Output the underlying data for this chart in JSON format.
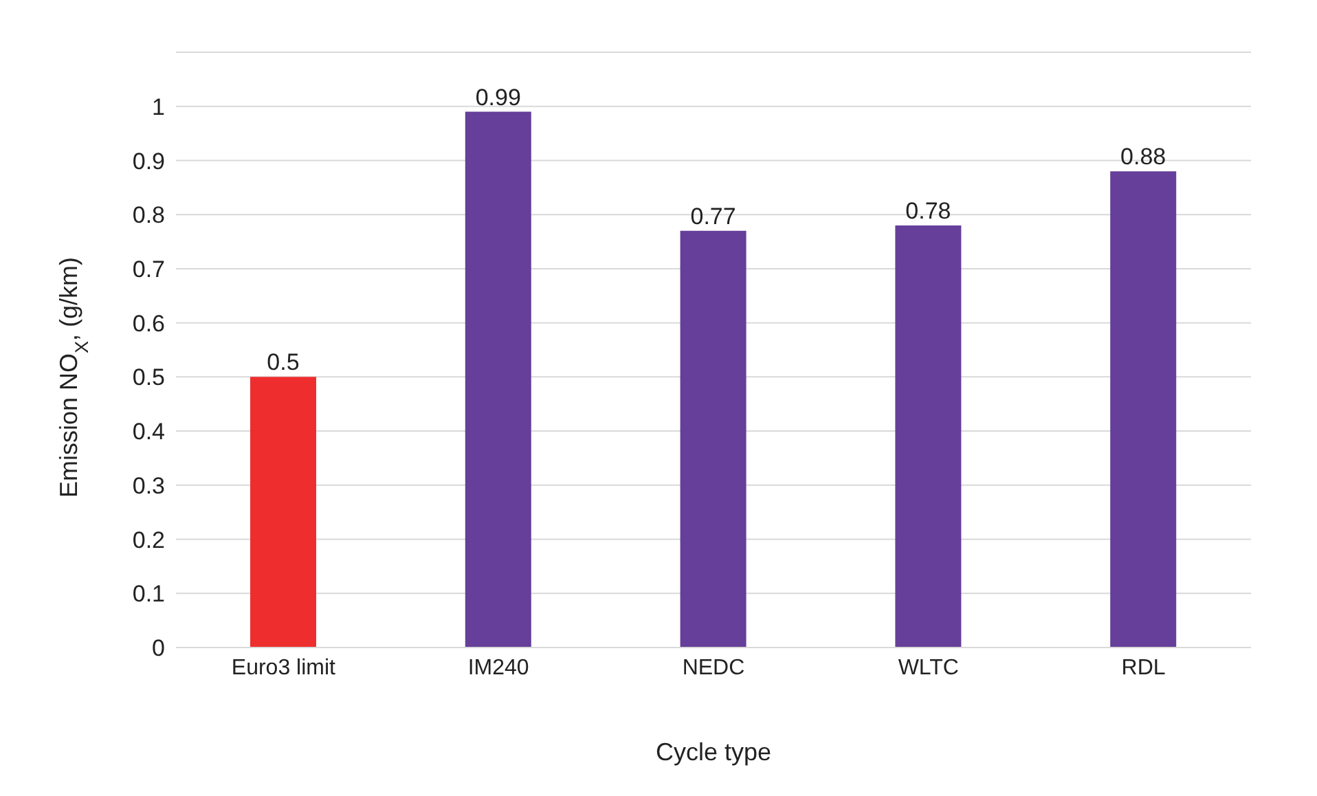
{
  "chart_data": {
    "type": "bar",
    "xlabel": "Cycle type",
    "ylabel": "Emission NO$_{X}$, (g/km)",
    "categories": [
      "Euro3 limit",
      "IM240",
      "NEDC",
      "WLTC",
      "RDL"
    ],
    "values": [
      0.5,
      0.99,
      0.77,
      0.78,
      0.88
    ],
    "colors": [
      "#ee2e2e",
      "#653f99",
      "#653f99",
      "#653f99",
      "#653f99"
    ],
    "ylim": [
      0,
      1.1
    ],
    "yticks": [
      0,
      0.1,
      0.2,
      0.3,
      0.4,
      0.5,
      0.6,
      0.7,
      0.8,
      0.9,
      1,
      {
        "value": 1.1,
        "label": null
      }
    ],
    "grid": "y",
    "data_labels": true
  }
}
